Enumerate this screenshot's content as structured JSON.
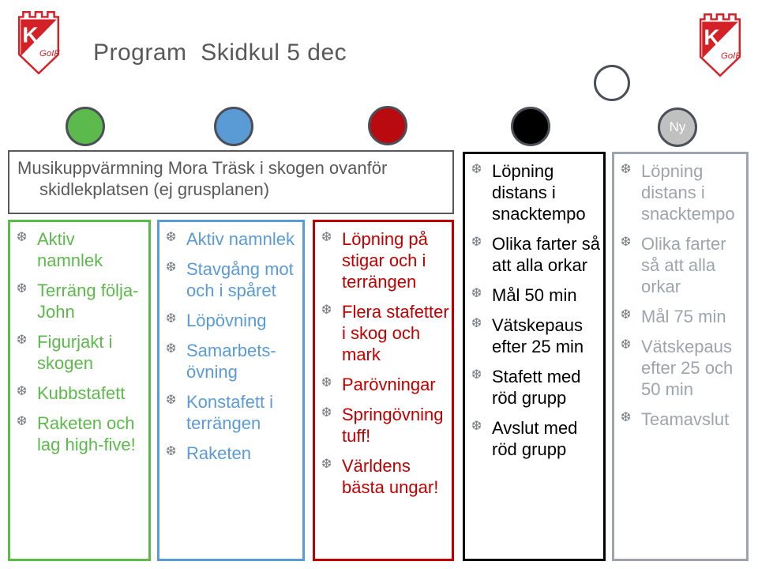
{
  "slide": {
    "title": "Program  Skidkul 5 dec"
  },
  "logo": {
    "letter": "K",
    "club": "GoIF"
  },
  "banner": {
    "line1": "Musikuppvärmning Mora Träsk i skogen ovanför",
    "line2": "skidlekplatsen (ej grusplanen)"
  },
  "icons": {
    "snowflake": "❆"
  },
  "colors": {
    "title_text": "#595959",
    "banner_border": "#595959",
    "bullet_gray": "#7F8387",
    "circle_outline": "#4A4F58",
    "logo_red": "#D42127"
  },
  "circles": [
    {
      "id": "green",
      "color": "#5CB94C",
      "label": ""
    },
    {
      "id": "blue",
      "color": "#5B9BD5",
      "label": ""
    },
    {
      "id": "red",
      "color": "#B90B0F",
      "label": ""
    },
    {
      "id": "black",
      "color": "#000000",
      "label": ""
    },
    {
      "id": "white",
      "color": "#FFFFFF",
      "label": ""
    },
    {
      "id": "new",
      "color": "#C0C0C0",
      "label": "Ny"
    }
  ],
  "groups": [
    {
      "id": "green-group",
      "color": "#5CB94C",
      "items": [
        "Aktiv  namnlek",
        "Terräng följa-\nJohn",
        "Figurjakt i\nskogen",
        "Kubbstafett",
        "Raketen och\nlag high-five!"
      ]
    },
    {
      "id": "blue-group",
      "color": "#5B9BD5",
      "items": [
        "Aktiv namnlek",
        "Stavgång mot\noch i spåret",
        "Löpövning",
        "Samarbets-\növning",
        "Konstafett i\nterrängen",
        "Raketen"
      ]
    },
    {
      "id": "red-group",
      "color": "#C00000",
      "items": [
        "Löpning på\nstigar och i\nterrängen",
        "Flera stafetter\ni skog och\nmark",
        "Parövningar",
        "Springövning\ntuff!",
        "Världens\nbästa ungar!"
      ]
    },
    {
      "id": "black-group",
      "color": "#000000",
      "items": [
        "Löpning\ndistans i\nsnacktempo",
        "Olika farter så\natt alla orkar",
        "Mål 50 min",
        "Vätskepaus\nefter 25 min",
        "Stafett med\nröd grupp",
        "Avslut med\nröd grupp"
      ]
    },
    {
      "id": "gray-group",
      "color": "#9EA4AC",
      "items": [
        "Löpning\ndistans i\nsnacktempo",
        "Olika farter\nså att alla\norkar",
        "Mål 75 min",
        "Vätskepaus\nefter 25 och\n50 min",
        "Teamavslut"
      ]
    }
  ]
}
